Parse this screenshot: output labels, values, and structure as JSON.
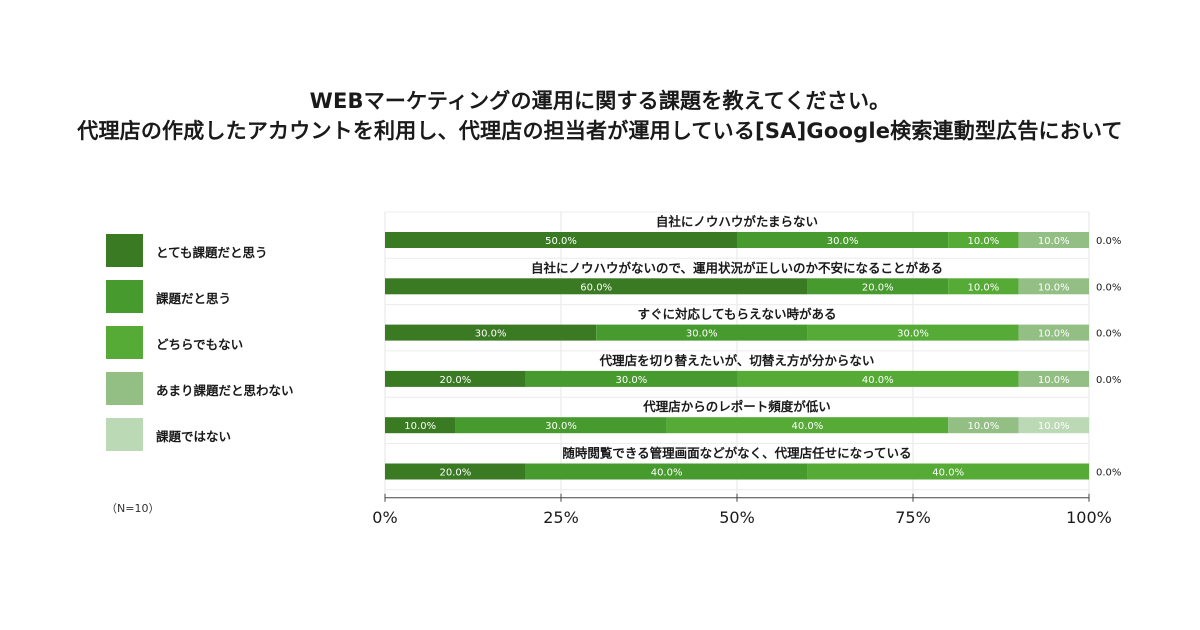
{
  "title": {
    "line1": "WEBマーケティングの運用に関する課題を教えてください。",
    "line2": "代理店の作成したアカウントを利用し、代理店の担当者が運用している[SA]Google検索連動型広告において"
  },
  "note": "（N=10）",
  "colors": [
    "#3a7a23",
    "#479a2e",
    "#55ab35",
    "#93bf85",
    "#bcd9b5"
  ],
  "chart_data": {
    "type": "bar",
    "orientation": "horizontal",
    "stacked": true,
    "xlim": [
      0,
      100
    ],
    "x_ticks": [
      "0%",
      "25%",
      "50%",
      "75%",
      "100%"
    ],
    "legend_position": "left",
    "categories": [
      "自社にノウハウがたまらない",
      "自社にノウハウがないので、運用状況が正しいのか不安になることがある",
      "すぐに対応してもらえない時がある",
      "代理店を切り替えたいが、切替え方が分からない",
      "代理店からのレポート頻度が低い",
      "随時閲覧できる管理画面などがなく、代理店任せになっている"
    ],
    "series": [
      {
        "name": "とても課題だと思う",
        "values": [
          50,
          60,
          30,
          20,
          10,
          20
        ],
        "labels": [
          "50.0%",
          "60.0%",
          "30.0%",
          "20.0%",
          "10.0%",
          "20.0%"
        ]
      },
      {
        "name": "課題だと思う",
        "values": [
          30,
          20,
          30,
          30,
          30,
          40
        ],
        "labels": [
          "30.0%",
          "20.0%",
          "30.0%",
          "30.0%",
          "30.0%",
          "40.0%"
        ]
      },
      {
        "name": "どちらでもない",
        "values": [
          10,
          10,
          30,
          40,
          40,
          40
        ],
        "labels": [
          "10.0%",
          "10.0%",
          "30.0%",
          "40.0%",
          "40.0%",
          "40.0%"
        ]
      },
      {
        "name": "あまり課題だと思わない",
        "values": [
          10,
          10,
          10,
          10,
          10,
          0
        ],
        "labels": [
          "10.0%",
          "10.0%",
          "10.0%",
          "10.0%",
          "10.0%",
          ""
        ]
      },
      {
        "name": "課題ではない",
        "values": [
          0,
          0,
          0,
          0,
          10,
          0
        ],
        "labels": [
          "",
          "",
          "",
          "",
          "10.0%",
          ""
        ]
      }
    ],
    "outside_labels": [
      "0.0%",
      "0.0%",
      "0.0%",
      "0.0%",
      "",
      "0.0%"
    ]
  }
}
